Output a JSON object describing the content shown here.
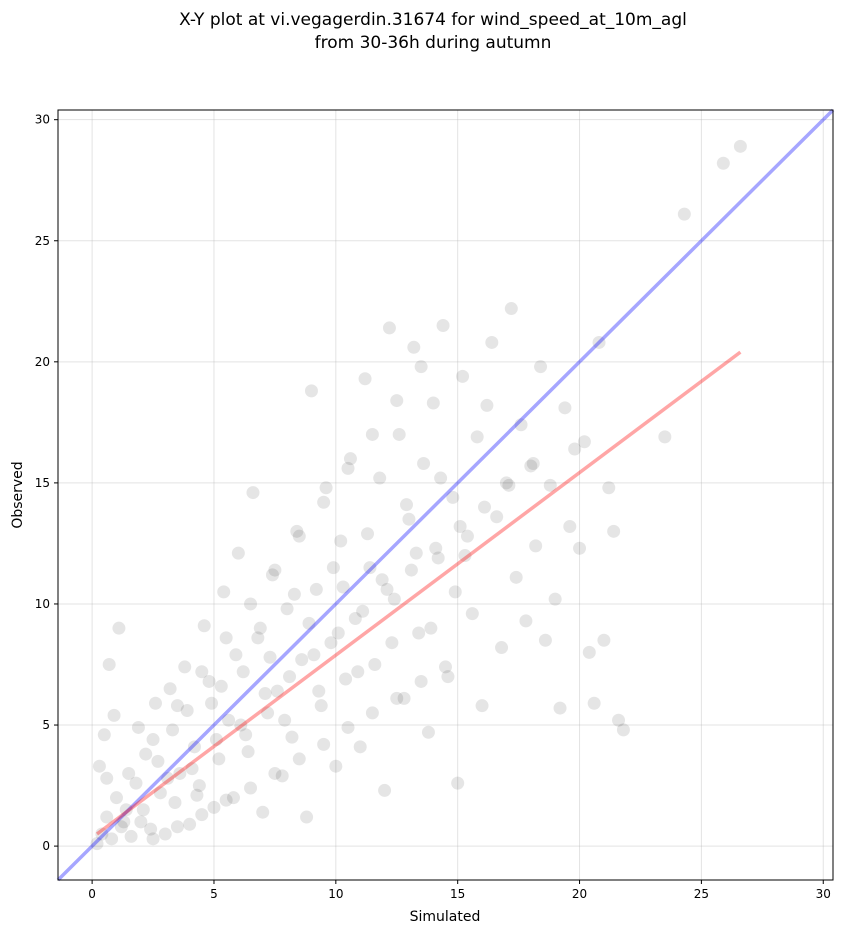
{
  "chart_data": {
    "type": "scatter",
    "title_line1": "X-Y plot at vi.vegagerdin.31674 for wind_speed_at_10m_agl",
    "title_line2": "from 30-36h during autumn",
    "xlabel": "Simulated",
    "ylabel": "Observed",
    "xlim": [
      -1.4,
      30.4
    ],
    "ylim": [
      -1.4,
      30.4
    ],
    "xticks": [
      0,
      5,
      10,
      15,
      20,
      25,
      30
    ],
    "yticks": [
      0,
      5,
      10,
      15,
      20,
      25,
      30
    ],
    "grid": true,
    "colors": {
      "points": "#000000",
      "identity_line": "#0000ff",
      "fit_line": "#ff0000",
      "grid": "#b0b0b0"
    },
    "identity_line": {
      "x": [
        -1.4,
        30.4
      ],
      "y": [
        -1.4,
        30.4
      ]
    },
    "fit_line": {
      "x": [
        0.2,
        26.6
      ],
      "y": [
        0.5,
        20.4
      ]
    },
    "points": [
      [
        0.4,
        0.5
      ],
      [
        0.6,
        1.2
      ],
      [
        0.8,
        0.3
      ],
      [
        1.0,
        2.0
      ],
      [
        1.2,
        0.8
      ],
      [
        0.3,
        3.3
      ],
      [
        0.5,
        4.6
      ],
      [
        0.7,
        7.5
      ],
      [
        1.1,
        9.0
      ],
      [
        0.9,
        5.4
      ],
      [
        1.4,
        1.5
      ],
      [
        1.6,
        0.4
      ],
      [
        1.8,
        2.6
      ],
      [
        2.0,
        1.0
      ],
      [
        2.2,
        3.8
      ],
      [
        2.4,
        0.7
      ],
      [
        2.6,
        5.9
      ],
      [
        2.8,
        2.2
      ],
      [
        3.0,
        0.5
      ],
      [
        3.2,
        6.5
      ],
      [
        3.4,
        1.8
      ],
      [
        3.6,
        3.0
      ],
      [
        3.8,
        7.4
      ],
      [
        4.0,
        0.9
      ],
      [
        4.2,
        4.1
      ],
      [
        4.4,
        2.5
      ],
      [
        4.6,
        9.1
      ],
      [
        4.8,
        6.8
      ],
      [
        5.0,
        1.6
      ],
      [
        5.2,
        3.6
      ],
      [
        5.4,
        10.5
      ],
      [
        5.6,
        5.2
      ],
      [
        5.8,
        2.0
      ],
      [
        6.0,
        12.1
      ],
      [
        6.2,
        7.2
      ],
      [
        6.4,
        3.9
      ],
      [
        6.6,
        14.6
      ],
      [
        6.8,
        8.6
      ],
      [
        7.0,
        1.4
      ],
      [
        7.2,
        5.5
      ],
      [
        7.4,
        11.2
      ],
      [
        7.6,
        6.4
      ],
      [
        7.8,
        2.9
      ],
      [
        8.0,
        9.8
      ],
      [
        8.2,
        4.5
      ],
      [
        8.4,
        13.0
      ],
      [
        8.6,
        7.7
      ],
      [
        8.8,
        1.2
      ],
      [
        9.0,
        18.8
      ],
      [
        9.2,
        10.6
      ],
      [
        9.4,
        5.8
      ],
      [
        9.6,
        14.8
      ],
      [
        9.8,
        8.4
      ],
      [
        10.0,
        3.3
      ],
      [
        10.2,
        12.6
      ],
      [
        10.4,
        6.9
      ],
      [
        10.6,
        16.0
      ],
      [
        10.8,
        9.4
      ],
      [
        11.0,
        4.1
      ],
      [
        11.2,
        19.3
      ],
      [
        11.4,
        11.5
      ],
      [
        11.6,
        7.5
      ],
      [
        11.8,
        15.2
      ],
      [
        12.0,
        2.3
      ],
      [
        12.2,
        21.4
      ],
      [
        12.4,
        10.2
      ],
      [
        12.6,
        17.0
      ],
      [
        12.8,
        6.1
      ],
      [
        13.0,
        13.5
      ],
      [
        13.2,
        20.6
      ],
      [
        13.4,
        8.8
      ],
      [
        13.6,
        15.8
      ],
      [
        13.8,
        4.7
      ],
      [
        14.0,
        18.3
      ],
      [
        14.2,
        11.9
      ],
      [
        14.4,
        21.5
      ],
      [
        14.6,
        7.0
      ],
      [
        14.8,
        14.4
      ],
      [
        15.0,
        2.6
      ],
      [
        15.2,
        19.4
      ],
      [
        15.4,
        12.8
      ],
      [
        15.6,
        9.6
      ],
      [
        15.8,
        16.9
      ],
      [
        16.0,
        5.8
      ],
      [
        16.2,
        18.2
      ],
      [
        16.4,
        20.8
      ],
      [
        16.6,
        13.6
      ],
      [
        16.8,
        8.2
      ],
      [
        17.0,
        15.0
      ],
      [
        17.2,
        22.2
      ],
      [
        17.4,
        11.1
      ],
      [
        17.6,
        17.4
      ],
      [
        17.8,
        9.3
      ],
      [
        18.0,
        15.7
      ],
      [
        18.2,
        12.4
      ],
      [
        18.4,
        19.8
      ],
      [
        18.6,
        8.5
      ],
      [
        18.8,
        14.9
      ],
      [
        19.0,
        10.2
      ],
      [
        19.2,
        5.7
      ],
      [
        19.4,
        18.1
      ],
      [
        19.6,
        13.2
      ],
      [
        19.8,
        16.4
      ],
      [
        20.0,
        12.3
      ],
      [
        20.2,
        16.7
      ],
      [
        20.4,
        8.0
      ],
      [
        20.6,
        5.9
      ],
      [
        20.8,
        20.8
      ],
      [
        21.0,
        8.5
      ],
      [
        21.2,
        14.8
      ],
      [
        21.4,
        13.0
      ],
      [
        21.6,
        5.2
      ],
      [
        21.8,
        4.8
      ],
      [
        23.5,
        16.9
      ],
      [
        24.3,
        26.1
      ],
      [
        25.9,
        28.2
      ],
      [
        26.6,
        28.9
      ],
      [
        2.1,
        1.5
      ],
      [
        3.1,
        2.8
      ],
      [
        4.1,
        3.2
      ],
      [
        5.1,
        4.4
      ],
      [
        6.1,
        5.0
      ],
      [
        7.1,
        6.3
      ],
      [
        8.1,
        7.0
      ],
      [
        9.1,
        7.9
      ],
      [
        10.1,
        8.8
      ],
      [
        11.1,
        9.7
      ],
      [
        12.1,
        10.6
      ],
      [
        13.1,
        11.4
      ],
      [
        14.1,
        12.3
      ],
      [
        15.1,
        13.2
      ],
      [
        16.1,
        14.0
      ],
      [
        17.1,
        14.9
      ],
      [
        18.1,
        15.8
      ],
      [
        2.5,
        0.3
      ],
      [
        3.5,
        0.8
      ],
      [
        4.5,
        1.3
      ],
      [
        5.5,
        1.9
      ],
      [
        6.5,
        2.4
      ],
      [
        7.5,
        3.0
      ],
      [
        8.5,
        3.6
      ],
      [
        9.5,
        4.2
      ],
      [
        10.5,
        4.9
      ],
      [
        11.5,
        5.5
      ],
      [
        12.5,
        6.1
      ],
      [
        13.5,
        6.8
      ],
      [
        14.5,
        7.4
      ],
      [
        1.5,
        3.0
      ],
      [
        2.5,
        4.4
      ],
      [
        3.5,
        5.8
      ],
      [
        4.5,
        7.2
      ],
      [
        5.5,
        8.6
      ],
      [
        6.5,
        10.0
      ],
      [
        7.5,
        11.4
      ],
      [
        8.5,
        12.8
      ],
      [
        9.5,
        14.2
      ],
      [
        10.5,
        15.6
      ],
      [
        11.5,
        17.0
      ],
      [
        12.5,
        18.4
      ],
      [
        13.5,
        19.8
      ],
      [
        0.2,
        0.1
      ],
      [
        0.6,
        2.8
      ],
      [
        1.3,
        1.0
      ],
      [
        1.9,
        4.9
      ],
      [
        2.7,
        3.5
      ],
      [
        3.3,
        4.8
      ],
      [
        3.9,
        5.6
      ],
      [
        4.3,
        2.1
      ],
      [
        4.9,
        5.9
      ],
      [
        5.3,
        6.6
      ],
      [
        5.9,
        7.9
      ],
      [
        6.3,
        4.6
      ],
      [
        6.9,
        9.0
      ],
      [
        7.3,
        7.8
      ],
      [
        7.9,
        5.2
      ],
      [
        8.3,
        10.4
      ],
      [
        8.9,
        9.2
      ],
      [
        9.3,
        6.4
      ],
      [
        9.9,
        11.5
      ],
      [
        10.3,
        10.7
      ],
      [
        10.9,
        7.2
      ],
      [
        11.3,
        12.9
      ],
      [
        11.9,
        11.0
      ],
      [
        12.3,
        8.4
      ],
      [
        12.9,
        14.1
      ],
      [
        13.3,
        12.1
      ],
      [
        13.9,
        9.0
      ],
      [
        14.3,
        15.2
      ],
      [
        14.9,
        10.5
      ],
      [
        15.3,
        12.0
      ]
    ]
  }
}
